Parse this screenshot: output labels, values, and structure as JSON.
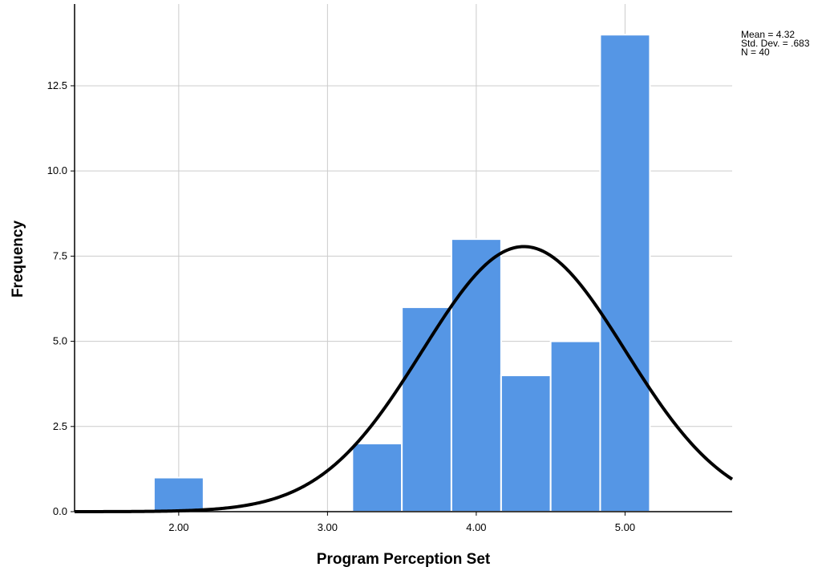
{
  "chart_data": {
    "type": "bar",
    "subtype": "histogram",
    "xlabel": "Program Perception Set",
    "ylabel": "Frequency",
    "xlim": [
      1.3,
      5.72
    ],
    "ylim": [
      0,
      14.9
    ],
    "x_ticks": [
      {
        "value": 2.0,
        "label": "2.00"
      },
      {
        "value": 3.0,
        "label": "3.00"
      },
      {
        "value": 4.0,
        "label": "4.00"
      },
      {
        "value": 5.0,
        "label": "5.00"
      }
    ],
    "y_ticks": [
      {
        "value": 0,
        "label": "0.0"
      },
      {
        "value": 2.5,
        "label": "2.5"
      },
      {
        "value": 5.0,
        "label": "5.0"
      },
      {
        "value": 7.5,
        "label": "7.5"
      },
      {
        "value": 10.0,
        "label": "10.0"
      },
      {
        "value": 12.5,
        "label": "12.5"
      }
    ],
    "bins": [
      {
        "x0": 1.833,
        "x1": 2.167,
        "count": 1
      },
      {
        "x0": 3.167,
        "x1": 3.5,
        "count": 2
      },
      {
        "x0": 3.5,
        "x1": 3.833,
        "count": 6
      },
      {
        "x0": 3.833,
        "x1": 4.167,
        "count": 8
      },
      {
        "x0": 4.167,
        "x1": 4.5,
        "count": 4
      },
      {
        "x0": 4.5,
        "x1": 4.833,
        "count": 5
      },
      {
        "x0": 4.833,
        "x1": 5.167,
        "count": 14
      }
    ],
    "normal_curve": {
      "mean": 4.32,
      "sd": 0.683,
      "n": 40,
      "bin_width": 0.333
    },
    "grid": true,
    "colors": {
      "bar_fill": "#5596e5",
      "bar_edge": "#ffffff",
      "curve": "#000000",
      "grid": "#cccccc",
      "axis": "#000000"
    },
    "stats_lines": [
      "Mean = 4.32",
      "Std. Dev. = .683",
      "N = 40"
    ]
  }
}
